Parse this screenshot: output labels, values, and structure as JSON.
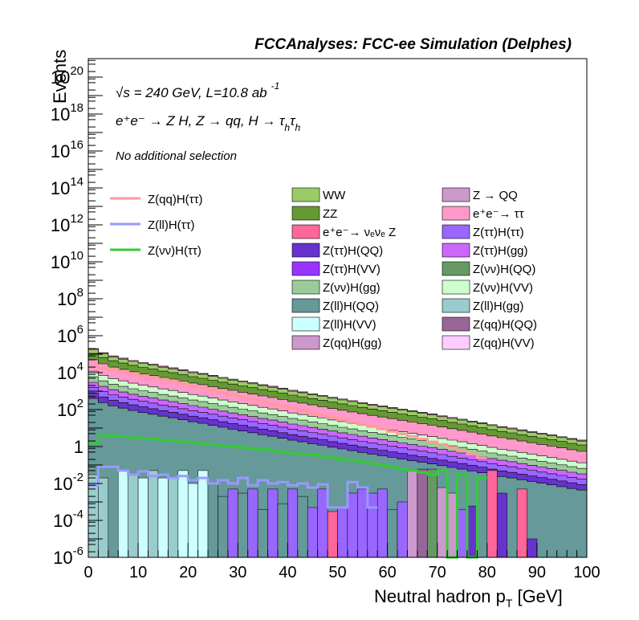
{
  "chart_data": {
    "type": "stacked-histogram",
    "title": "FCCAnalyses: FCC-ee Simulation (Delphes)",
    "xlabel": "Neutral hadron p_T [GeV]",
    "ylabel": "Events",
    "log_y": true,
    "xlim": [
      0,
      100
    ],
    "ylim": [
      1e-06,
      1e+21
    ],
    "x_ticks": [
      0,
      10,
      20,
      30,
      40,
      50,
      60,
      70,
      80,
      90,
      100
    ],
    "y_ticks": [
      {
        "base": "10",
        "exp": "-6",
        "value": 1e-06
      },
      {
        "base": "10",
        "exp": "-4",
        "value": 0.0001
      },
      {
        "base": "10",
        "exp": "-2",
        "value": 0.01
      },
      {
        "base": "1",
        "exp": "",
        "value": 1
      },
      {
        "base": "10",
        "exp": "2",
        "value": 100.0
      },
      {
        "base": "10",
        "exp": "4",
        "value": 10000.0
      },
      {
        "base": "10",
        "exp": "6",
        "value": 1000000.0
      },
      {
        "base": "10",
        "exp": "8",
        "value": 100000000.0
      },
      {
        "base": "10",
        "exp": "10",
        "value": 10000000000.0
      },
      {
        "base": "10",
        "exp": "12",
        "value": 1000000000000.0
      },
      {
        "base": "10",
        "exp": "14",
        "value": 100000000000000.0
      },
      {
        "base": "10",
        "exp": "16",
        "value": 1e+16
      },
      {
        "base": "10",
        "exp": "18",
        "value": 1e+18
      },
      {
        "base": "10",
        "exp": "20",
        "value": 1e+20
      }
    ],
    "annotations": {
      "energy": "√s = 240 GeV, L=10.8 ab⁻¹",
      "process": "e⁺e⁻ → Z H, Z → qq, H → τ_h τ_h",
      "selection": "No additional selection"
    },
    "bin_width": 2,
    "stack_top_estimate": [
      200000.0,
      120000.0,
      80000.0,
      60000.0,
      45000.0,
      35000.0,
      28000.0,
      22000.0,
      18000.0,
      14000.0,
      11000.0,
      9000.0,
      7000.0,
      5500.0,
      4400.0,
      3500.0,
      2800.0,
      2200.0,
      1800.0,
      1400.0,
      1100.0,
      900,
      720,
      580,
      460,
      370,
      300,
      240,
      195,
      160,
      130,
      105,
      85,
      70,
      57,
      46,
      37,
      30,
      24,
      19,
      15,
      12,
      10,
      8,
      6.5,
      5.2,
      4.2,
      3.4,
      2.7,
      2.2
    ],
    "signals": [
      {
        "name": "Z(qq)H(ττ)",
        "color": "#ff9a9a",
        "values": [
          20000.0,
          18000.0,
          15000.0,
          12000.0,
          9000.0,
          7000.0,
          5500.0,
          4300.0,
          3300.0,
          2500.0,
          1900.0,
          1450.0,
          1100.0,
          830,
          630,
          480,
          360,
          270,
          205,
          155,
          117,
          88,
          66,
          50,
          38,
          28,
          21,
          16,
          12,
          9,
          6.5,
          4.8,
          3.5,
          2.5,
          1.8,
          1.3,
          0.9,
          0.6,
          0.4,
          0.25
        ]
      },
      {
        "name": "Z(ll)H(ττ)",
        "color": "#9999ff",
        "values": [
          0.008,
          0.08,
          0.08,
          0.05,
          0.03,
          0.045,
          0.025,
          0.03,
          0.02,
          0.025,
          0.015,
          0.02,
          0.01,
          0.015,
          0.01,
          0.02,
          0.008,
          0.015,
          0.01,
          0.012,
          0.008,
          0.01,
          0.006,
          0.009,
          0.0005,
          0.0005,
          0.012,
          0.006,
          0.0005
        ]
      },
      {
        "name": "Z(νν)H(ττ)",
        "color": "#33cc33",
        "values": [
          1.5,
          4,
          4,
          3.5,
          3,
          2.8,
          2.5,
          2.2,
          2,
          1.8,
          1.6,
          1.4,
          1.3,
          1.1,
          1.0,
          0.9,
          0.8,
          0.7,
          0.6,
          0.5,
          0.45,
          0.4,
          0.35,
          0.3,
          0.25,
          0.2,
          0.18,
          0.15,
          0.12,
          0.1,
          0.08,
          0.06,
          0.05,
          0.04,
          0.03,
          0.05,
          1e-06,
          0.03,
          1e-06,
          0.02
        ]
      }
    ],
    "legend": {
      "signals": [
        "Z(qq)H(ττ)",
        "Z(ll)H(ττ)",
        "Z(νν)H(ττ)"
      ],
      "backgrounds": [
        {
          "label": "WW",
          "color": "#99cc66"
        },
        {
          "label": "Z → QQ",
          "color": "#cc99cc"
        },
        {
          "label": "ZZ",
          "color": "#669933"
        },
        {
          "label": "e⁺e⁻→ ττ",
          "color": "#ff99cc"
        },
        {
          "label": "e⁺e⁻→ νₑνₑ Z",
          "color": "#ff6699"
        },
        {
          "label": "Z(ττ)H(ττ)",
          "color": "#9966ff"
        },
        {
          "label": "Z(ττ)H(QQ)",
          "color": "#6633cc"
        },
        {
          "label": "Z(ττ)H(gg)",
          "color": "#cc66ff"
        },
        {
          "label": "Z(ττ)H(VV)",
          "color": "#9933ff"
        },
        {
          "label": "Z(νν)H(QQ)",
          "color": "#669966"
        },
        {
          "label": "Z(νν)H(gg)",
          "color": "#99cc99"
        },
        {
          "label": "Z(νν)H(VV)",
          "color": "#ccffcc"
        },
        {
          "label": "Z(ll)H(QQ)",
          "color": "#669999"
        },
        {
          "label": "Z(ll)H(gg)",
          "color": "#99cccc"
        },
        {
          "label": "Z(ll)H(VV)",
          "color": "#ccffff"
        },
        {
          "label": "Z(qq)H(QQ)",
          "color": "#996699"
        },
        {
          "label": "Z(qq)H(gg)",
          "color": "#cc99cc"
        },
        {
          "label": "Z(qq)H(VV)",
          "color": "#ffccff"
        }
      ]
    }
  },
  "text": {
    "title": "FCCAnalyses: FCC-ee Simulation (Delphes)",
    "xlabel": "Neutral hadron p",
    "xlabel_sub": "T",
    "xlabel_unit": "[GeV]",
    "ylabel": "Events",
    "ann_sqrt": "√",
    "ann_energy": "s = 240 GeV, L=10.8 ab",
    "ann_energy_sup": "-1",
    "ann_process": "e⁺e⁻ → Z H, Z → qq, H → τ",
    "ann_process_h1": "h",
    "ann_process_tau2": "τ",
    "ann_process_h2": "h",
    "ann_selection": "No additional selection"
  }
}
